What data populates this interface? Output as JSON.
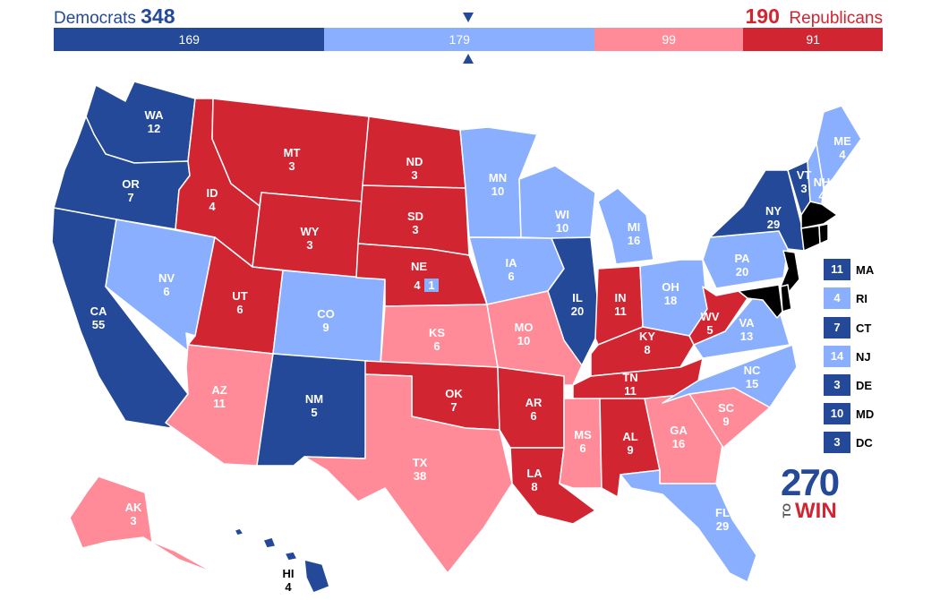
{
  "header": {
    "dem_label": "Democrats",
    "dem_total": "348",
    "rep_total": "190",
    "rep_label": "Republicans"
  },
  "bar": [
    {
      "value": "169",
      "category": "safe-dem",
      "color": "#244999"
    },
    {
      "value": "179",
      "category": "lean-dem",
      "color": "#8aafff"
    },
    {
      "value": "99",
      "category": "lean-rep",
      "color": "#ff8b98"
    },
    {
      "value": "91",
      "category": "safe-rep",
      "color": "#d22532"
    }
  ],
  "colors": {
    "safe_dem": "#244999",
    "lean_dem": "#8aafff",
    "lean_rep": "#ff8b98",
    "safe_rep": "#d22532"
  },
  "states": {
    "WA": {
      "abbr": "WA",
      "ev": "12",
      "rating": "safe_dem"
    },
    "OR": {
      "abbr": "OR",
      "ev": "7",
      "rating": "safe_dem"
    },
    "CA": {
      "abbr": "CA",
      "ev": "55",
      "rating": "safe_dem"
    },
    "NV": {
      "abbr": "NV",
      "ev": "6",
      "rating": "lean_dem"
    },
    "ID": {
      "abbr": "ID",
      "ev": "4",
      "rating": "safe_rep"
    },
    "MT": {
      "abbr": "MT",
      "ev": "3",
      "rating": "safe_rep"
    },
    "WY": {
      "abbr": "WY",
      "ev": "3",
      "rating": "safe_rep"
    },
    "UT": {
      "abbr": "UT",
      "ev": "6",
      "rating": "safe_rep"
    },
    "AZ": {
      "abbr": "AZ",
      "ev": "11",
      "rating": "lean_rep"
    },
    "CO": {
      "abbr": "CO",
      "ev": "9",
      "rating": "lean_dem"
    },
    "NM": {
      "abbr": "NM",
      "ev": "5",
      "rating": "safe_dem"
    },
    "ND": {
      "abbr": "ND",
      "ev": "3",
      "rating": "safe_rep"
    },
    "SD": {
      "abbr": "SD",
      "ev": "3",
      "rating": "safe_rep"
    },
    "NE": {
      "abbr": "NE",
      "ev": "4",
      "rating": "safe_rep"
    },
    "KS": {
      "abbr": "KS",
      "ev": "6",
      "rating": "lean_rep"
    },
    "OK": {
      "abbr": "OK",
      "ev": "7",
      "rating": "safe_rep"
    },
    "TX": {
      "abbr": "TX",
      "ev": "38",
      "rating": "lean_rep"
    },
    "MN": {
      "abbr": "MN",
      "ev": "10",
      "rating": "lean_dem"
    },
    "IA": {
      "abbr": "IA",
      "ev": "6",
      "rating": "lean_dem"
    },
    "MO": {
      "abbr": "MO",
      "ev": "10",
      "rating": "lean_rep"
    },
    "AR": {
      "abbr": "AR",
      "ev": "6",
      "rating": "safe_rep"
    },
    "LA": {
      "abbr": "LA",
      "ev": "8",
      "rating": "safe_rep"
    },
    "WI": {
      "abbr": "WI",
      "ev": "10",
      "rating": "lean_dem"
    },
    "IL": {
      "abbr": "IL",
      "ev": "20",
      "rating": "safe_dem"
    },
    "MI": {
      "abbr": "MI",
      "ev": "16",
      "rating": "lean_dem"
    },
    "IN": {
      "abbr": "IN",
      "ev": "11",
      "rating": "safe_rep"
    },
    "OH": {
      "abbr": "OH",
      "ev": "18",
      "rating": "lean_dem"
    },
    "KY": {
      "abbr": "KY",
      "ev": "8",
      "rating": "safe_rep"
    },
    "TN": {
      "abbr": "TN",
      "ev": "11",
      "rating": "safe_rep"
    },
    "MS": {
      "abbr": "MS",
      "ev": "6",
      "rating": "lean_rep"
    },
    "AL": {
      "abbr": "AL",
      "ev": "9",
      "rating": "safe_rep"
    },
    "GA": {
      "abbr": "GA",
      "ev": "16",
      "rating": "lean_rep"
    },
    "FL": {
      "abbr": "FL",
      "ev": "29",
      "rating": "lean_dem"
    },
    "SC": {
      "abbr": "SC",
      "ev": "9",
      "rating": "lean_rep"
    },
    "NC": {
      "abbr": "NC",
      "ev": "15",
      "rating": "lean_dem"
    },
    "VA": {
      "abbr": "VA",
      "ev": "13",
      "rating": "lean_dem"
    },
    "WV": {
      "abbr": "WV",
      "ev": "5",
      "rating": "safe_rep"
    },
    "PA": {
      "abbr": "PA",
      "ev": "20",
      "rating": "lean_dem"
    },
    "NY": {
      "abbr": "NY",
      "ev": "29",
      "rating": "safe_dem"
    },
    "VT": {
      "abbr": "VT",
      "ev": "3",
      "rating": "safe_dem"
    },
    "NH": {
      "abbr": "NH",
      "ev": "4",
      "rating": "lean_dem"
    },
    "ME": {
      "abbr": "ME",
      "ev": "4",
      "rating": "lean_dem"
    },
    "AK": {
      "abbr": "AK",
      "ev": "3",
      "rating": "lean_rep"
    },
    "HI": {
      "abbr": "HI",
      "ev": "4",
      "rating": "safe_dem"
    },
    "NE_district": {
      "ev": "1",
      "rating": "lean_dem"
    }
  },
  "small_states": [
    {
      "abbr": "MA",
      "ev": "11",
      "rating": "safe_dem"
    },
    {
      "abbr": "RI",
      "ev": "4",
      "rating": "lean_dem"
    },
    {
      "abbr": "CT",
      "ev": "7",
      "rating": "safe_dem"
    },
    {
      "abbr": "NJ",
      "ev": "14",
      "rating": "lean_dem"
    },
    {
      "abbr": "DE",
      "ev": "3",
      "rating": "safe_dem"
    },
    {
      "abbr": "MD",
      "ev": "10",
      "rating": "safe_dem"
    },
    {
      "abbr": "DC",
      "ev": "3",
      "rating": "safe_dem"
    }
  ],
  "logo": {
    "number": "270",
    "to": "TO",
    "win": "WIN"
  }
}
